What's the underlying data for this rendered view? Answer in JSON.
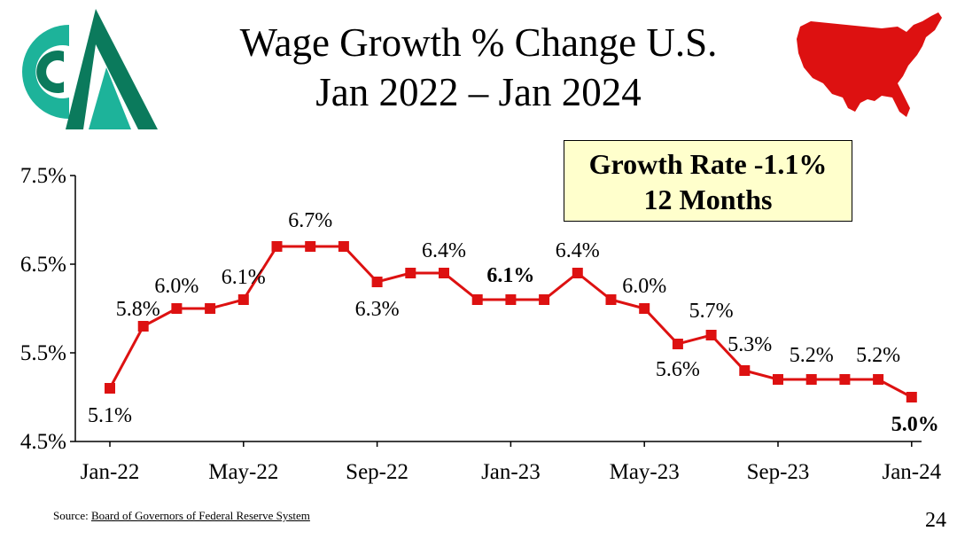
{
  "slide": {
    "title_line1": "Wage Growth % Change U.S.",
    "title_line2": "Jan 2022 – Jan 2024",
    "callout_line1": "Growth Rate -1.1%",
    "callout_line2": "12 Months",
    "source_prefix": "Source: ",
    "source_link": "Board of Governors of Federal Reserve System",
    "page_number": "24"
  },
  "colors": {
    "series": "#dd1111",
    "map": "#dd1111",
    "logo_teal": "#1db39a",
    "logo_green": "#0b7a5c",
    "callout_bg": "#ffffcc"
  },
  "chart_data": {
    "type": "line",
    "title": "Wage Growth % Change U.S. Jan 2022 – Jan 2024",
    "xlabel": "",
    "ylabel": "",
    "ylim": [
      4.5,
      7.5
    ],
    "yticks": [
      4.5,
      5.5,
      6.5,
      7.5
    ],
    "ytick_labels": [
      "4.5%",
      "5.5%",
      "6.5%",
      "7.5%"
    ],
    "x": [
      "Jan-22",
      "Feb-22",
      "Mar-22",
      "Apr-22",
      "May-22",
      "Jun-22",
      "Jul-22",
      "Aug-22",
      "Sep-22",
      "Oct-22",
      "Nov-22",
      "Dec-22",
      "Jan-23",
      "Feb-23",
      "Mar-23",
      "Apr-23",
      "May-23",
      "Jun-23",
      "Jul-23",
      "Aug-23",
      "Sep-23",
      "Oct-23",
      "Nov-23",
      "Dec-23",
      "Jan-24"
    ],
    "xtick_labels": [
      "Jan-22",
      "May-22",
      "Sep-22",
      "Jan-23",
      "May-23",
      "Sep-23",
      "Jan-24"
    ],
    "series": [
      {
        "name": "Wage Growth",
        "values": [
          5.1,
          5.8,
          6.0,
          6.0,
          6.1,
          6.7,
          6.7,
          6.7,
          6.3,
          6.4,
          6.4,
          6.1,
          6.1,
          6.1,
          6.4,
          6.1,
          6.0,
          5.6,
          5.7,
          5.3,
          5.2,
          5.2,
          5.2,
          5.2,
          5.0
        ]
      }
    ],
    "data_labels": [
      {
        "index": 0,
        "text": "5.1%"
      },
      {
        "index": 1,
        "text": "5.8%"
      },
      {
        "index": 2,
        "text": "6.0%"
      },
      {
        "index": 4,
        "text": "6.1%"
      },
      {
        "index": 6,
        "text": "6.7%"
      },
      {
        "index": 8,
        "text": "6.3%"
      },
      {
        "index": 10,
        "text": "6.4%"
      },
      {
        "index": 12,
        "text": "6.1%",
        "bold": true
      },
      {
        "index": 14,
        "text": "6.4%"
      },
      {
        "index": 16,
        "text": "6.0%"
      },
      {
        "index": 17,
        "text": "5.6%"
      },
      {
        "index": 18,
        "text": "5.7%"
      },
      {
        "index": 19,
        "text": "5.3%"
      },
      {
        "index": 21,
        "text": "5.2%"
      },
      {
        "index": 23,
        "text": "5.2%"
      },
      {
        "index": 24,
        "text": "5.0%",
        "bold": true
      }
    ]
  }
}
